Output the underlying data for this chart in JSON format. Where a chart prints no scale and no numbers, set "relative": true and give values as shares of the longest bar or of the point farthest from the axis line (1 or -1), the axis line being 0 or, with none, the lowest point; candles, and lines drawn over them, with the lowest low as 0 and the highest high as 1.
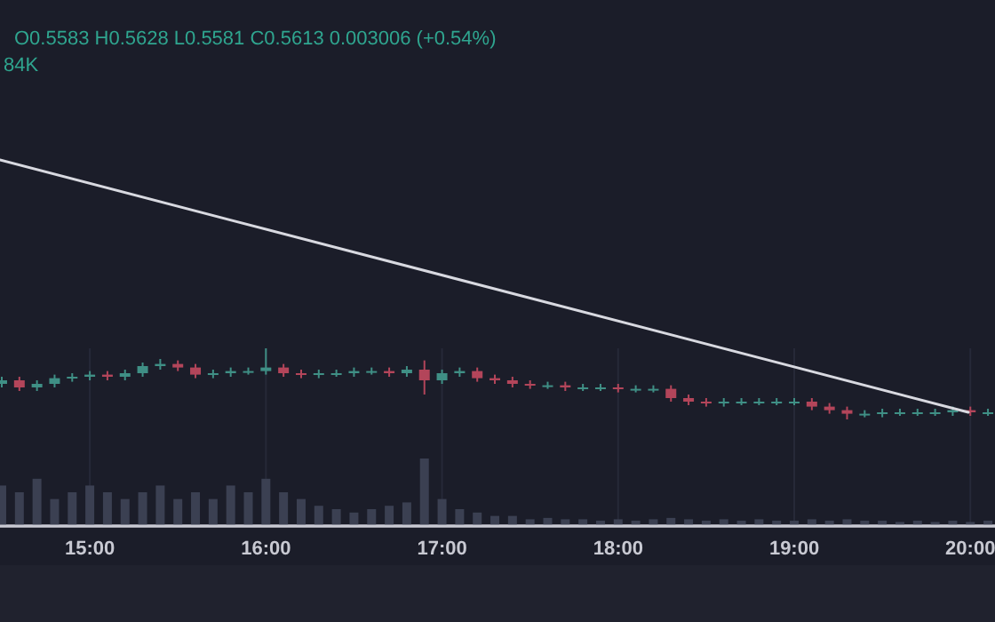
{
  "chart_data": [
    {
      "type": "other",
      "annotations": [
        "O0.5583 H0.5628 L0.5581 C0.5613 0.003006 (+0.54%)",
        "84K"
      ]
    },
    {
      "type": "line",
      "relative": true,
      "categories": [
        null,
        null
      ],
      "series": [
        {
          "color": "#d8d9e0",
          "values": [
            1,
            0
          ]
        }
      ]
    },
    {
      "type": "candlestick",
      "relative": true,
      "grid": "x",
      "xlim": [
        14.49,
        20.14
      ],
      "xticks": [
        {
          "value": 15,
          "label": "15:00"
        },
        {
          "value": 16,
          "label": "16:00"
        },
        {
          "value": 17,
          "label": "17:00"
        },
        {
          "value": 18,
          "label": "18:00"
        },
        {
          "value": 19,
          "label": "19:00"
        },
        {
          "value": 20,
          "label": "20:00"
        }
      ],
      "x": [
        14.5,
        14.6,
        14.7,
        14.8,
        14.9,
        15.0,
        15.1,
        15.2,
        15.3,
        15.4,
        15.5,
        15.6,
        15.7,
        15.8,
        15.9,
        16.0,
        16.1,
        16.2,
        16.3,
        16.4,
        16.5,
        16.6,
        16.7,
        16.8,
        16.9,
        17.0,
        17.1,
        17.2,
        17.3,
        17.4,
        17.5,
        17.6,
        17.7,
        17.8,
        17.9,
        18.0,
        18.1,
        18.2,
        18.3,
        18.4,
        18.5,
        18.6,
        18.7,
        18.8,
        18.9,
        19.0,
        19.1,
        19.2,
        19.3,
        19.4,
        19.5,
        19.6,
        19.7,
        19.8,
        19.9,
        20.0,
        20.1
      ],
      "ohlc": [
        [
          0.5,
          0.6,
          0.45,
          0.55
        ],
        [
          0.55,
          0.6,
          0.4,
          0.45
        ],
        [
          0.45,
          0.55,
          0.4,
          0.5
        ],
        [
          0.5,
          0.63,
          0.45,
          0.58
        ],
        [
          0.58,
          0.65,
          0.53,
          0.6
        ],
        [
          0.6,
          0.68,
          0.55,
          0.63
        ],
        [
          0.63,
          0.68,
          0.55,
          0.6
        ],
        [
          0.6,
          0.7,
          0.55,
          0.65
        ],
        [
          0.65,
          0.8,
          0.6,
          0.75
        ],
        [
          0.75,
          0.85,
          0.7,
          0.78
        ],
        [
          0.78,
          0.83,
          0.68,
          0.73
        ],
        [
          0.73,
          0.78,
          0.58,
          0.63
        ],
        [
          0.63,
          0.7,
          0.58,
          0.65
        ],
        [
          0.65,
          0.73,
          0.6,
          0.68
        ],
        [
          0.68,
          0.73,
          0.63,
          0.68
        ],
        [
          0.68,
          1.0,
          0.63,
          0.73
        ],
        [
          0.73,
          0.78,
          0.6,
          0.65
        ],
        [
          0.65,
          0.7,
          0.58,
          0.63
        ],
        [
          0.63,
          0.7,
          0.58,
          0.65
        ],
        [
          0.65,
          0.7,
          0.6,
          0.65
        ],
        [
          0.65,
          0.73,
          0.6,
          0.68
        ],
        [
          0.68,
          0.73,
          0.63,
          0.68
        ],
        [
          0.68,
          0.73,
          0.6,
          0.65
        ],
        [
          0.65,
          0.75,
          0.6,
          0.7
        ],
        [
          0.7,
          0.83,
          0.35,
          0.55
        ],
        [
          0.55,
          0.7,
          0.5,
          0.65
        ],
        [
          0.65,
          0.73,
          0.6,
          0.68
        ],
        [
          0.68,
          0.73,
          0.53,
          0.58
        ],
        [
          0.58,
          0.63,
          0.5,
          0.55
        ],
        [
          0.55,
          0.6,
          0.45,
          0.5
        ],
        [
          0.5,
          0.55,
          0.43,
          0.48
        ],
        [
          0.48,
          0.53,
          0.43,
          0.48
        ],
        [
          0.48,
          0.53,
          0.4,
          0.45
        ],
        [
          0.45,
          0.5,
          0.4,
          0.45
        ],
        [
          0.45,
          0.5,
          0.4,
          0.45
        ],
        [
          0.45,
          0.5,
          0.38,
          0.43
        ],
        [
          0.43,
          0.48,
          0.38,
          0.43
        ],
        [
          0.43,
          0.48,
          0.38,
          0.43
        ],
        [
          0.43,
          0.48,
          0.25,
          0.3
        ],
        [
          0.3,
          0.35,
          0.2,
          0.25
        ],
        [
          0.25,
          0.3,
          0.18,
          0.23
        ],
        [
          0.23,
          0.3,
          0.18,
          0.25
        ],
        [
          0.25,
          0.3,
          0.2,
          0.25
        ],
        [
          0.25,
          0.3,
          0.2,
          0.25
        ],
        [
          0.25,
          0.3,
          0.2,
          0.25
        ],
        [
          0.25,
          0.3,
          0.2,
          0.25
        ],
        [
          0.25,
          0.3,
          0.13,
          0.18
        ],
        [
          0.18,
          0.23,
          0.08,
          0.13
        ],
        [
          0.13,
          0.18,
          0,
          0.08
        ],
        [
          0.08,
          0.13,
          0.03,
          0.08
        ],
        [
          0.08,
          0.15,
          0.03,
          0.1
        ],
        [
          0.1,
          0.15,
          0.05,
          0.1
        ],
        [
          0.1,
          0.15,
          0.05,
          0.1
        ],
        [
          0.1,
          0.15,
          0.05,
          0.1
        ],
        [
          0.1,
          0.18,
          0.05,
          0.13
        ],
        [
          0.13,
          0.18,
          0.05,
          0.1
        ],
        [
          0.1,
          0.15,
          0.05,
          0.1
        ]
      ]
    },
    {
      "type": "bar",
      "relative": true,
      "color": "#3b4052",
      "xlim": [
        14.49,
        20.14
      ],
      "x": [
        14.5,
        14.6,
        14.7,
        14.8,
        14.9,
        15.0,
        15.1,
        15.2,
        15.3,
        15.4,
        15.5,
        15.6,
        15.7,
        15.8,
        15.9,
        16.0,
        16.1,
        16.2,
        16.3,
        16.4,
        16.5,
        16.6,
        16.7,
        16.8,
        16.9,
        17.0,
        17.1,
        17.2,
        17.3,
        17.4,
        17.5,
        17.6,
        17.7,
        17.8,
        17.9,
        18.0,
        18.1,
        18.2,
        18.3,
        18.4,
        18.5,
        18.6,
        18.7,
        18.8,
        18.9,
        19.0,
        19.1,
        19.2,
        19.3,
        19.4,
        19.5,
        19.6,
        19.7,
        19.8,
        19.9,
        20.0,
        20.1
      ],
      "values": [
        0.6,
        0.5,
        0.7,
        0.4,
        0.5,
        0.6,
        0.5,
        0.4,
        0.5,
        0.6,
        0.4,
        0.5,
        0.4,
        0.6,
        0.5,
        0.7,
        0.5,
        0.4,
        0.3,
        0.25,
        0.2,
        0.25,
        0.3,
        0.35,
        1.0,
        0.4,
        0.25,
        0.2,
        0.15,
        0.15,
        0.1,
        0.12,
        0.1,
        0.1,
        0.08,
        0.1,
        0.08,
        0.1,
        0.12,
        0.1,
        0.08,
        0.1,
        0.08,
        0.1,
        0.08,
        0.08,
        0.1,
        0.08,
        0.1,
        0.08,
        0.08,
        0.06,
        0.08,
        0.06,
        0.08,
        0.06,
        0.08
      ]
    }
  ]
}
